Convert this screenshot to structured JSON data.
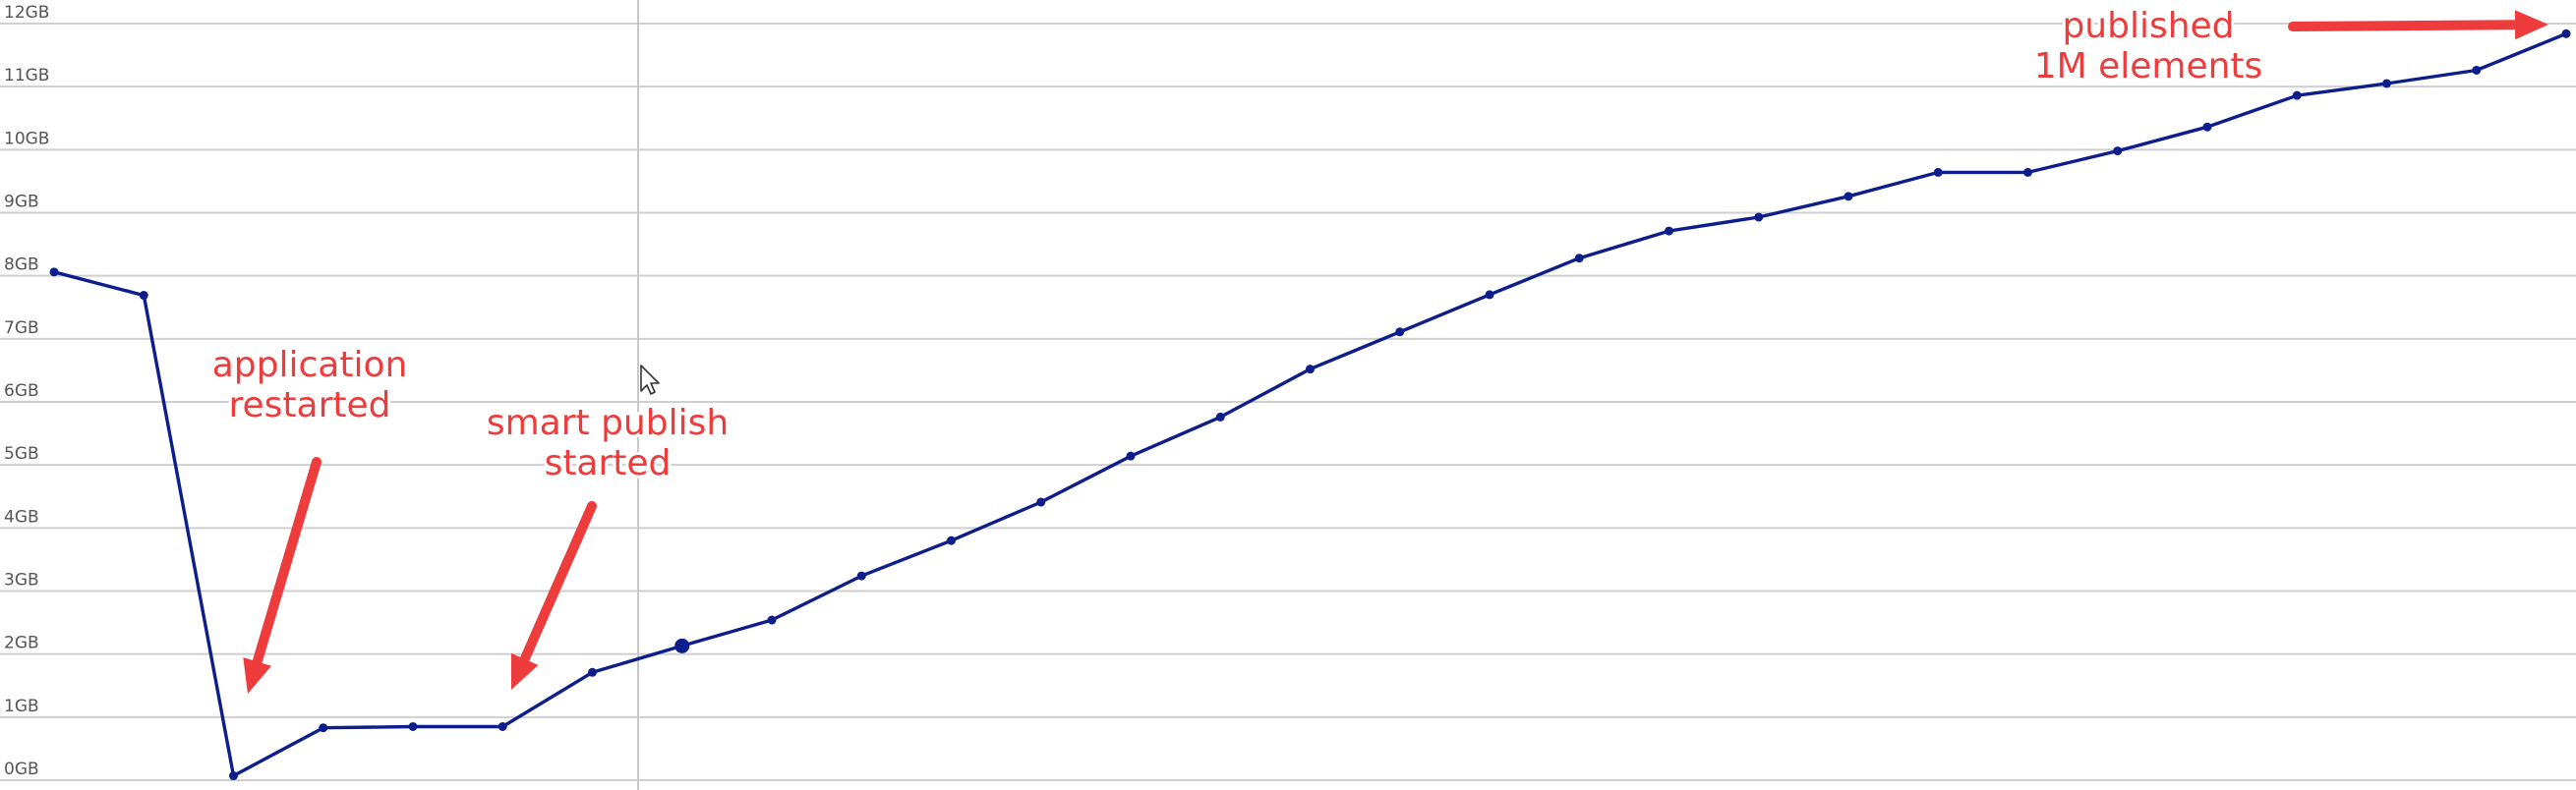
{
  "chart_data": {
    "type": "line",
    "title": "",
    "xlabel": "",
    "ylabel": "",
    "y_unit": "GB",
    "ylim": [
      0,
      12
    ],
    "yticks": [
      "0GB",
      "1GB",
      "2GB",
      "3GB",
      "4GB",
      "5GB",
      "6GB",
      "7GB",
      "8GB",
      "9GB",
      "10GB",
      "11GB",
      "12GB"
    ],
    "grid": true,
    "legend": "none",
    "line_color": "#0d1e8c",
    "series": [
      {
        "values": [
          8.06,
          7.69,
          0.07,
          0.83,
          0.85,
          0.85,
          1.71,
          2.13,
          2.54,
          3.24,
          3.8,
          4.41,
          5.14,
          5.76,
          6.52,
          7.11,
          7.7,
          8.28,
          8.71,
          8.93,
          9.26,
          9.64,
          9.64,
          9.98,
          10.36,
          10.86,
          11.05,
          11.26,
          11.84
        ]
      }
    ],
    "highlighted_index": 7,
    "annotations": [
      {
        "id": "restart",
        "lines": [
          "application",
          "restarted"
        ],
        "color": "#ee3b3b",
        "arrow": "down-left",
        "points_to_index": 2
      },
      {
        "id": "smart-publish",
        "lines": [
          "smart publish",
          "started"
        ],
        "color": "#ee3b3b",
        "arrow": "down-left",
        "points_to_index": 5
      },
      {
        "id": "published",
        "lines": [
          "published",
          "1M elements"
        ],
        "color": "#ee3b3b",
        "arrow": "right",
        "points_to_index": 28
      }
    ]
  }
}
